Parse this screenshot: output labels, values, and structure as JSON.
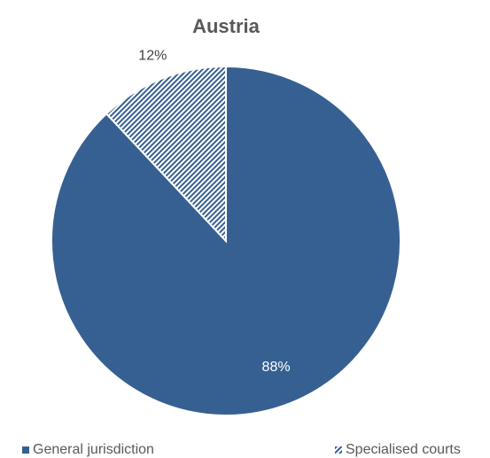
{
  "chart_data": {
    "type": "pie",
    "title": "Austria",
    "categories": [
      "General jurisdiction",
      "Specialised courts"
    ],
    "values": [
      88,
      12
    ],
    "value_labels": [
      "88%",
      "12%"
    ],
    "colors": [
      "#376092",
      "#376092"
    ],
    "hatched": [
      false,
      true
    ],
    "legend": "bottom"
  }
}
